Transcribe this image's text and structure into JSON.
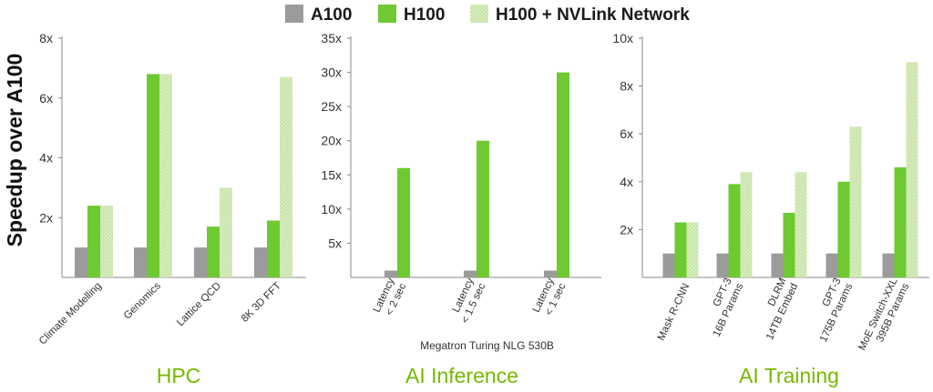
{
  "colors": {
    "a100": "#9b9b9b",
    "h100": "#6fc931",
    "nvlink": "#c6e4a5",
    "title": "#76b900",
    "axis": "#8a8a8a"
  },
  "legend": [
    {
      "label": "A100",
      "icon": "gray-square"
    },
    {
      "label": "H100",
      "icon": "green-square"
    },
    {
      "label": "H100 + NVLink Network",
      "icon": "light-green-hatched-square"
    }
  ],
  "ylabel": "Speedup over A100",
  "chart_data": [
    {
      "type": "bar",
      "title": "HPC",
      "categories": [
        [
          "Climate Modelling"
        ],
        [
          "Genomics"
        ],
        [
          "Lattice QCD"
        ],
        [
          "8K 3D FFT"
        ]
      ],
      "series": [
        {
          "name": "A100",
          "values": [
            1,
            1,
            1,
            1
          ]
        },
        {
          "name": "H100",
          "values": [
            2.4,
            6.8,
            1.7,
            1.9
          ]
        },
        {
          "name": "H100 + NVLink Network",
          "values": [
            2.4,
            6.8,
            3.0,
            6.7
          ]
        }
      ],
      "ylim": [
        0,
        8
      ],
      "yticks": [
        {
          "v": 2,
          "label": "2x"
        },
        {
          "v": 4,
          "label": "4x"
        },
        {
          "v": 6,
          "label": "6x"
        },
        {
          "v": 8,
          "label": "8x"
        }
      ],
      "subtitle": ""
    },
    {
      "type": "bar",
      "title": "AI Inference",
      "categories": [
        [
          "Latency",
          "< 2 sec"
        ],
        [
          "Latency",
          "< 1.5 sec"
        ],
        [
          "Latency",
          "< 1 sec"
        ]
      ],
      "series": [
        {
          "name": "A100",
          "values": [
            1,
            1,
            1
          ]
        },
        {
          "name": "H100",
          "values": [
            16,
            20,
            30
          ]
        }
      ],
      "ylim": [
        0,
        35
      ],
      "yticks": [
        {
          "v": 5,
          "label": "5x"
        },
        {
          "v": 10,
          "label": "10x"
        },
        {
          "v": 15,
          "label": "15x"
        },
        {
          "v": 20,
          "label": "20x"
        },
        {
          "v": 25,
          "label": "25x"
        },
        {
          "v": 30,
          "label": "30x"
        },
        {
          "v": 35,
          "label": "35x"
        }
      ],
      "subtitle": "Megatron Turing NLG 530B"
    },
    {
      "type": "bar",
      "title": "AI Training",
      "categories": [
        [
          "Mask R-CNN"
        ],
        [
          "GPT-3",
          "16B Params"
        ],
        [
          "DLRM",
          "14TB Embed"
        ],
        [
          "GPT-3",
          "175B Params"
        ],
        [
          "MoE Switch-XXL",
          "395B Params"
        ]
      ],
      "series": [
        {
          "name": "A100",
          "values": [
            1,
            1,
            1,
            1,
            1
          ]
        },
        {
          "name": "H100",
          "values": [
            2.3,
            3.9,
            2.7,
            4.0,
            4.6
          ]
        },
        {
          "name": "H100 + NVLink Network",
          "values": [
            2.3,
            4.4,
            4.4,
            6.3,
            9.0
          ]
        }
      ],
      "ylim": [
        0,
        10
      ],
      "yticks": [
        {
          "v": 2,
          "label": "2x"
        },
        {
          "v": 4,
          "label": "4x"
        },
        {
          "v": 6,
          "label": "6x"
        },
        {
          "v": 8,
          "label": "8x"
        },
        {
          "v": 10,
          "label": "10x"
        }
      ],
      "subtitle": ""
    }
  ]
}
